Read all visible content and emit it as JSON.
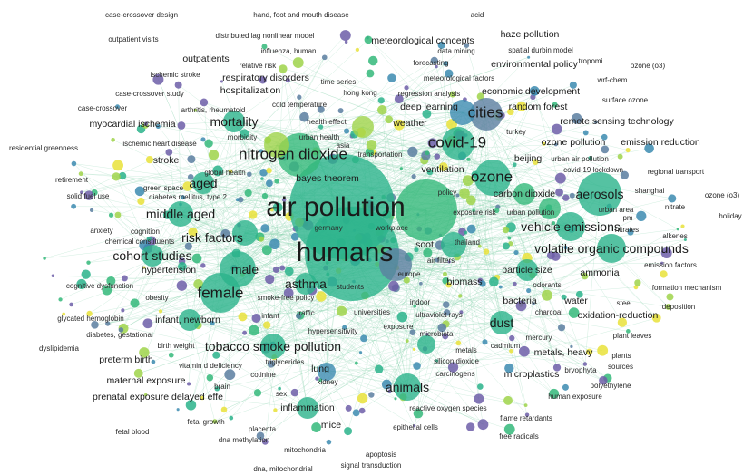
{
  "map": {
    "colors": {
      "teal": "#2ab38b",
      "green": "#34b97a",
      "lime": "#9fd34a",
      "yellow": "#e9e23a",
      "blue": "#3c8bb0",
      "slate": "#5b7ea0",
      "purple": "#6d5ea8",
      "edge": "#7fcfa5"
    },
    "labels": [
      "case-crossover design",
      "hand, foot and mouth disease",
      "acid",
      "outpatient visits",
      "distributed lag nonlinear model",
      "meteorological concepts",
      "haze pollution",
      "influenza, human",
      "data mining",
      "spatial durbin model",
      "outpatients",
      "relative risk",
      "forecasting",
      "environmental policy",
      "tropomi",
      "ozone (o3)",
      "ischemic stroke",
      "meteorological factors",
      "wrf-chem",
      "respiratory disorders",
      "time series",
      "economic development",
      "case-crossover study",
      "hospitalization",
      "hong kong",
      "regression analysis",
      "surface ozone",
      "case-crossover",
      "cold temperature",
      "deep learning",
      "random forest",
      "arthritis, rheumatoid",
      "mortality",
      "health effect",
      "weather",
      "cities",
      "remote sensing technology",
      "myocardial ischemia",
      "morbidity",
      "urban health",
      "turkey",
      "residential greenness",
      "ischemic heart disease",
      "covid-19",
      "ozone pollution",
      "emission reduction",
      "nitrogen dioxide",
      "asia",
      "transportation",
      "beijing",
      "urban air pollution",
      "stroke",
      "covid-19 lockdown",
      "regional transport",
      "global health",
      "ventilation",
      "ozone",
      "retirement",
      "aged",
      "bayes theorem",
      "aerosols",
      "green space",
      "carbon dioxide",
      "shanghai",
      "nitrate",
      "solid fuel use",
      "diabetes mellitus, type 2",
      "policy",
      "urban area",
      "ozone (o3)",
      "holiday",
      "air pollution",
      "exposure risk",
      "urban pollution",
      "pm",
      "middle aged",
      "vehicle emissions",
      "nitrates",
      "anxiety",
      "cognition",
      "germany",
      "workplace",
      "alkenes",
      "chemical constituents",
      "risk factors",
      "humans",
      "soot",
      "thailand",
      "volatile organic compounds",
      "cohort studies",
      "air filters",
      "particle size",
      "ammonia",
      "emission factors",
      "hypertension",
      "male",
      "europe",
      "biomass",
      "cognitive dysfunction",
      "asthma",
      "students",
      "odorants",
      "formation mechanism",
      "female",
      "obesity",
      "smoke-free policy",
      "indoor",
      "bacteria",
      "water",
      "steel",
      "deposition",
      "glycated hemoglobin",
      "infant, newborn",
      "infant",
      "traffic",
      "universities",
      "ultraviolet rays",
      "charcoal",
      "oxidation-reduction",
      "diabetes, gestational",
      "hypersensitivity",
      "exposure",
      "dust",
      "microbiota",
      "mercury",
      "plant leaves",
      "dyslipidemia",
      "birth weight",
      "tobacco smoke pollution",
      "metals",
      "cadmium",
      "metals, heavy",
      "plants",
      "preterm birth",
      "vitamin d deficiency",
      "triglycerides",
      "silicon dioxide",
      "microplastics",
      "bryophyta",
      "sources",
      "lung",
      "carcinogens",
      "cotinine",
      "kidney",
      "maternal exposure",
      "animals",
      "polyethylene",
      "brain",
      "human exposure",
      "prenatal exposure delayed effe",
      "inflammation",
      "reactive oxygen species",
      "sex",
      "fetal growth",
      "mice",
      "epithelial cells",
      "flame retardants",
      "fetal blood",
      "placenta",
      "dna methylation",
      "free radicals",
      "mitochondria",
      "apoptosis",
      "dna, mitochondrial",
      "signal transduction"
    ]
  }
}
